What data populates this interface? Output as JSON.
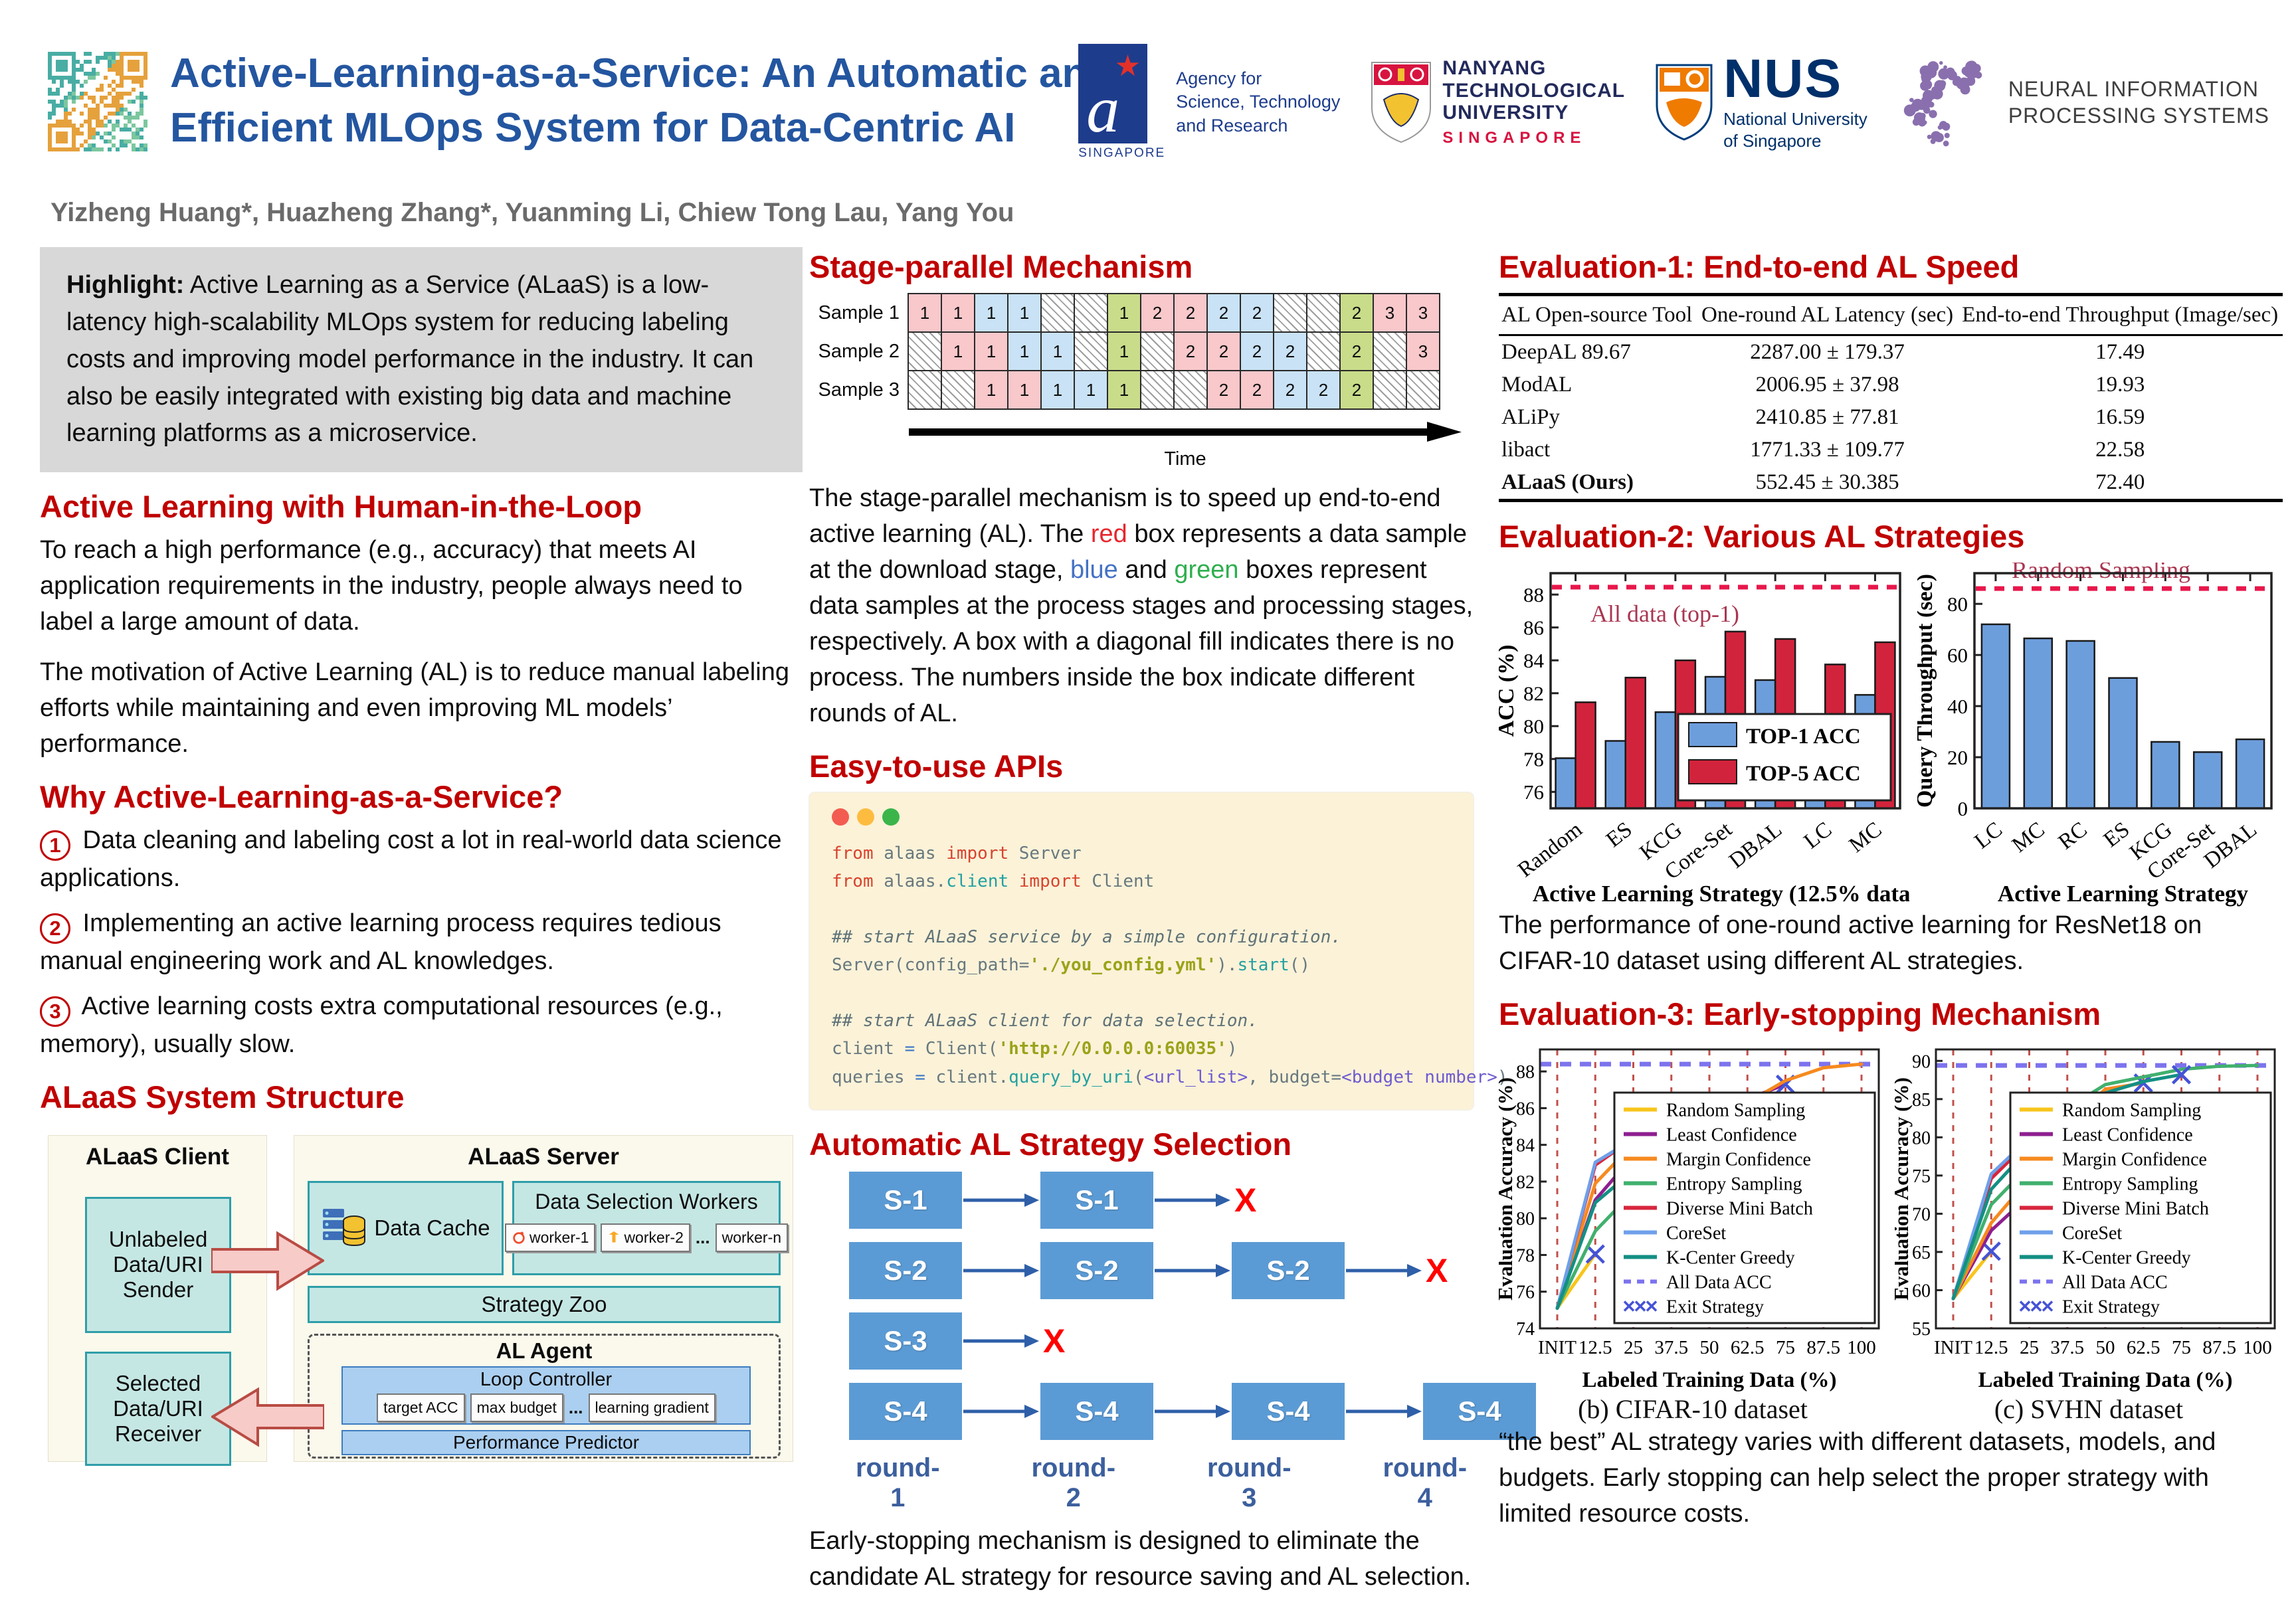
{
  "header": {
    "title_line1": "Active-Learning-as-a-Service: An Automatic and",
    "title_line2": "Efficient MLOps System for Data-Centric AI",
    "authors": "Yizheng Huang*, Huazheng Zhang*, Yuanming Li, Chiew Tong Lau, Yang You",
    "logos": {
      "astar": {
        "l1": "Agency for",
        "l2": "Science, Technology",
        "l3": "and Research",
        "country": "SINGAPORE"
      },
      "ntu": {
        "l1": "NANYANG",
        "l2": "TECHNOLOGICAL",
        "l3": "UNIVERSITY",
        "country": "SINGAPORE"
      },
      "nus": {
        "abbr": "NUS",
        "l1": "National University",
        "l2": "of Singapore"
      },
      "neurips": {
        "l1": "NEURAL INFORMATION",
        "l2": "PROCESSING SYSTEMS"
      }
    }
  },
  "highlight": {
    "label": "Highlight:",
    "text": " Active Learning as a Service (ALaaS) is a low-latency high-scalability MLOps system for reducing labeling costs and improving model performance in the industry. It can also be easily integrated with existing big data and machine learning platforms as a microservice."
  },
  "hitl": {
    "heading": "Active Learning with Human-in-the-Loop",
    "para1": "To reach a high performance (e.g., accuracy) that meets AI application requirements in the industry, people always need to label a large amount of data.",
    "para2": "The motivation of Active Learning (AL)  is to reduce manual labeling efforts while maintaining and even improving ML models’ performance."
  },
  "why": {
    "heading": "Why Active-Learning-as-a-Service?",
    "items": [
      {
        "num": "1",
        "text": "Data cleaning and labeling cost a lot in real-world data science applications."
      },
      {
        "num": "2",
        "text": "Implementing an active learning process requires tedious manual engineering work and AL knowledges."
      },
      {
        "num": "3",
        "text": "Active learning costs extra computational resources (e.g., memory), usually slow."
      }
    ]
  },
  "structure": {
    "heading": "ALaaS System Structure",
    "client_title": "ALaaS Client",
    "server_title": "ALaaS Server",
    "unlabeled_box": "Unlabeled Data/URI Sender",
    "selected_box": "Selected Data/URI Receiver",
    "data_cache": "Data Cache",
    "workers_title": "Data Selection Workers",
    "workers": [
      "worker-1",
      "worker-2",
      "worker-n"
    ],
    "workers_ellipsis": "...",
    "strategy_zoo": "Strategy Zoo",
    "al_agent": "AL Agent",
    "loop_controller": "Loop Controller",
    "controller_chips": [
      "target ACC",
      "max budget",
      "...",
      "learning gradient"
    ],
    "performance_predictor": "Performance Predictor"
  },
  "stage": {
    "heading": "Stage-parallel Mechanism",
    "row_labels": [
      "Sample 1",
      "Sample 2",
      "Sample 3"
    ],
    "rows": [
      [
        "p1",
        "p1",
        "b1",
        "b1",
        "h",
        "h",
        "g1",
        "p2",
        "p2",
        "b2",
        "b2",
        "h",
        "h",
        "g2",
        "p3",
        "p3"
      ],
      [
        "h",
        "p1",
        "p1",
        "b1",
        "b1",
        "h",
        "g1",
        "h",
        "p2",
        "p2",
        "b2",
        "b2",
        "h",
        "g2",
        "h",
        "p3"
      ],
      [
        "h",
        "h",
        "p1",
        "p1",
        "b1",
        "b1",
        "g1",
        "h",
        "h",
        "p2",
        "p2",
        "b2",
        "b2",
        "g2",
        "h",
        "h"
      ]
    ],
    "time_label": "Time",
    "description": [
      {
        "t": "The stage-parallel mechanism is to speed up end-to-end active learning (AL).  The "
      },
      {
        "t": "red",
        "c": "#E8262D"
      },
      {
        "t": " box represents a data sample at the download stage,  "
      },
      {
        "t": "blue",
        "c": "#4472C4"
      },
      {
        "t": " and "
      },
      {
        "t": "green",
        "c": "#2EAE4E"
      },
      {
        "t": " boxes represent data samples at the process stages and processing stages, respectively. A box with a diagonal fill indicates there is no process. The numbers inside the box indicate different rounds of AL."
      }
    ]
  },
  "apis": {
    "heading": "Easy-to-use APIs",
    "lines": [
      [
        {
          "t": "from",
          "c": "kw"
        },
        {
          "t": " alaas ",
          "c": "plain"
        },
        {
          "t": "import",
          "c": "kw"
        },
        {
          "t": " Server",
          "c": "plain"
        }
      ],
      [
        {
          "t": "from",
          "c": "kw"
        },
        {
          "t": " alaas.",
          "c": "plain"
        },
        {
          "t": "client",
          "c": "teal"
        },
        {
          "t": " ",
          "c": "plain"
        },
        {
          "t": "import",
          "c": "kw"
        },
        {
          "t": " Client",
          "c": "plain"
        }
      ],
      [],
      [
        {
          "t": "## start ALaaS service by a simple configuration.",
          "c": "comment"
        }
      ],
      [
        {
          "t": "Server(config_path=",
          "c": "plain"
        },
        {
          "t": "'./you_config.yml'",
          "c": "str"
        },
        {
          "t": ").",
          "c": "plain"
        },
        {
          "t": "start",
          "c": "teal"
        },
        {
          "t": "()",
          "c": "plain"
        }
      ],
      [],
      [
        {
          "t": "## start ALaaS client for data selection.",
          "c": "comment"
        }
      ],
      [
        {
          "t": "client ",
          "c": "plain"
        },
        {
          "t": "=",
          "c": "op"
        },
        {
          "t": " Client(",
          "c": "plain"
        },
        {
          "t": "'http://0.0.0.0:60035'",
          "c": "str"
        },
        {
          "t": ")",
          "c": "plain"
        }
      ],
      [
        {
          "t": "queries ",
          "c": "plain"
        },
        {
          "t": "=",
          "c": "op"
        },
        {
          "t": " client.",
          "c": "plain"
        },
        {
          "t": "query_by_uri",
          "c": "teal"
        },
        {
          "t": "(",
          "c": "plain"
        },
        {
          "t": "<url_list>",
          "c": "purple"
        },
        {
          "t": ", budget=",
          "c": "plain"
        },
        {
          "t": "<budget number>",
          "c": "purple"
        },
        {
          "t": ")",
          "c": "plain"
        }
      ]
    ]
  },
  "strategy": {
    "heading": "Automatic AL Strategy Selection",
    "rows": [
      {
        "label": "S-1",
        "count": 2,
        "x": true
      },
      {
        "label": "S-2",
        "count": 3,
        "x": true
      },
      {
        "label": "S-3",
        "count": 1,
        "x": true
      },
      {
        "label": "S-4",
        "count": 4,
        "x": false
      }
    ],
    "rounds": [
      "round-1",
      "round-2",
      "round-3",
      "round-4"
    ],
    "caption": "Early-stopping mechanism is designed to eliminate the candidate AL strategy for resource saving and AL selection."
  },
  "eval1": {
    "heading": "Evaluation-1: End-to-end AL Speed",
    "headers": [
      "AL Open-source Tool",
      "One-round AL Latency (sec)",
      "End-to-end Throughput (Image/sec)"
    ],
    "rows": [
      {
        "cells": [
          "DeepAL 89.67",
          "2287.00 ± 179.37",
          "17.49"
        ],
        "bold": false
      },
      {
        "cells": [
          "ModAL",
          "2006.95 ± 37.98",
          "19.93"
        ],
        "bold": false
      },
      {
        "cells": [
          "ALiPy",
          "2410.85 ± 77.81",
          "16.59"
        ],
        "bold": false
      },
      {
        "cells": [
          "libact",
          "1771.33 ± 109.77",
          "22.58"
        ],
        "bold": false
      },
      {
        "cells": [
          "ALaaS (Ours)",
          "552.45 ± 30.385",
          "72.40"
        ],
        "bold": true
      }
    ]
  },
  "eval2": {
    "heading": "Evaluation-2: Various AL Strategies",
    "caption": "The performance of one-round active learning for ResNet18 on CIFAR-10 dataset using different AL strategies."
  },
  "eval3": {
    "heading": "Evaluation-3: Early-stopping Mechanism",
    "note": "“the best” AL strategy varies with different datasets, models, and budgets. Early stopping can help select the proper strategy with limited resource costs."
  },
  "chart_data": [
    {
      "id": "chart-acc",
      "type": "bar",
      "categories": [
        "Random",
        "ES",
        "KCG",
        "Core-Set",
        "DBAL",
        "LC",
        "MC"
      ],
      "series": [
        {
          "name": "TOP-1 ACC",
          "color": "#6D9EDC",
          "values": [
            78.05,
            79.1,
            80.85,
            83.0,
            82.8,
            80.0,
            81.9
          ]
        },
        {
          "name": "TOP-5 ACC",
          "color": "#D2233C",
          "values": [
            81.45,
            82.95,
            84.0,
            85.75,
            85.3,
            83.75,
            85.1
          ]
        }
      ],
      "ref_line": {
        "value": 88.45,
        "label": "All data (top-1)"
      },
      "ylabel": "ACC (%)",
      "xlabel": "Active Learning Strategy (12.5% data)",
      "ylim": [
        75,
        89.3
      ],
      "yticks": [
        76,
        78,
        80,
        82,
        84,
        86,
        88
      ]
    },
    {
      "id": "chart-throughput",
      "type": "bar",
      "categories": [
        "LC",
        "MC",
        "RC",
        "ES",
        "KCG",
        "Core-Set",
        "DBAL"
      ],
      "series": [
        {
          "name": "Query Throughput",
          "color": "#6D9EDC",
          "values": [
            72,
            66.5,
            65.5,
            51,
            26,
            22,
            27
          ]
        }
      ],
      "ref_line": {
        "value": 86,
        "label": "Random Sampling"
      },
      "ylabel": "Query Throughput (sec)",
      "xlabel": "Active Learning Strategy",
      "ylim": [
        0,
        92
      ],
      "yticks": [
        0,
        20,
        40,
        60,
        80
      ]
    },
    {
      "id": "chart-cifar",
      "type": "line",
      "caption": "(b) CIFAR-10 dataset",
      "x_labels": [
        "INIT",
        "12.5",
        "25",
        "37.5",
        "50",
        "62.5",
        "75",
        "87.5",
        "100"
      ],
      "xlabel": "Labeled Training Data (%)",
      "ylabel": "Evaluation Accuracy (%)",
      "ylim": [
        74,
        89.2
      ],
      "yticks": [
        74,
        76,
        78,
        80,
        82,
        84,
        86,
        88
      ],
      "all_data_acc": 88.4,
      "series": [
        {
          "name": "Random Sampling",
          "color": "#F8C51C",
          "values": [
            75.1,
            78.05
          ],
          "exit": true
        },
        {
          "name": "Least Confidence",
          "color": "#8E1F8F",
          "values": [
            75.1,
            81.0,
            83.4,
            83.7,
            86.05,
            86.5,
            87.3
          ],
          "exit": true
        },
        {
          "name": "Margin Confidence",
          "color": "#F68A1F",
          "values": [
            75.1,
            81.9,
            84.05,
            84.25,
            85.5,
            86.3,
            87.5,
            88.2,
            88.4
          ],
          "exit": false
        },
        {
          "name": "Entropy Sampling",
          "color": "#41B06E",
          "values": [
            75.1,
            79.3,
            81.45
          ],
          "exit": true
        },
        {
          "name": "Diverse Mini Batch",
          "color": "#D7263D",
          "values": [
            75.1,
            82.9,
            84.35,
            84.9,
            85.5,
            86.0
          ],
          "exit": true
        },
        {
          "name": "CoreSet",
          "color": "#6FA0EA",
          "values": [
            75.1,
            83.05,
            84.3,
            85.15,
            85.4
          ],
          "exit": true
        },
        {
          "name": "K-Center Greedy",
          "color": "#148F84",
          "values": [
            75.1,
            80.85,
            82.6,
            82.95
          ],
          "exit": true
        }
      ],
      "legend_extra": [
        {
          "name": "All Data ACC"
        },
        {
          "name": "Exit Strategy"
        }
      ]
    },
    {
      "id": "chart-svhn",
      "type": "line",
      "caption": "(c) SVHN dataset",
      "x_labels": [
        "INIT",
        "12.5",
        "25",
        "37.5",
        "50",
        "62.5",
        "75",
        "87.5",
        "100"
      ],
      "xlabel": "Labeled Training Data (%)",
      "ylabel": "Evaluation Accuracy (%)",
      "ylim": [
        55,
        91.5
      ],
      "yticks": [
        55,
        60,
        65,
        70,
        75,
        80,
        85,
        90
      ],
      "all_data_acc": 89.4,
      "series": [
        {
          "name": "Random Sampling",
          "color": "#F8C51C",
          "values": [
            58.9,
            65.1
          ],
          "exit": true
        },
        {
          "name": "Least Confidence",
          "color": "#8E1F8F",
          "values": [
            58.9,
            67.8,
            72.4
          ],
          "exit": true
        },
        {
          "name": "Margin Confidence",
          "color": "#F68A1F",
          "values": [
            58.9,
            68.8,
            74.6,
            81.7,
            86.3,
            87.1
          ],
          "exit": true
        },
        {
          "name": "Entropy Sampling",
          "color": "#41B06E",
          "values": [
            58.9,
            71.2,
            76.3,
            83.8,
            86.9,
            87.9,
            88.9,
            89.3,
            89.4
          ],
          "exit": false
        },
        {
          "name": "Diverse Mini Batch",
          "color": "#D7263D",
          "values": [
            58.9,
            74.6,
            79.5,
            81.6
          ],
          "exit": true
        },
        {
          "name": "CoreSet",
          "color": "#6FA0EA",
          "values": [
            58.9,
            75.2,
            79.9,
            82.9,
            84.7
          ],
          "exit": true
        },
        {
          "name": "K-Center Greedy",
          "color": "#148F84",
          "values": [
            58.9,
            73.2,
            78.6,
            83.3,
            85.8,
            87.3,
            88.2
          ],
          "exit": true
        }
      ],
      "legend_extra": [
        {
          "name": "All Data ACC"
        },
        {
          "name": "Exit Strategy"
        }
      ]
    }
  ]
}
